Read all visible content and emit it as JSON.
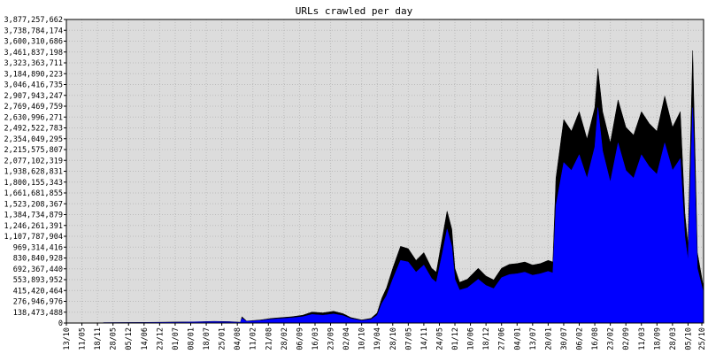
{
  "chart_data": {
    "type": "area",
    "title": "URLs crawled per day",
    "xlabel": "",
    "ylabel": "",
    "ylim": [
      0,
      3877257662
    ],
    "grid": true,
    "legend": "none",
    "colors": {
      "plot_background": "#dcdcdc",
      "grid": "#bcbcbc",
      "series_total": "#000000",
      "series_inner": "#0000ff",
      "frame": "#000000"
    },
    "y_ticks": [
      "0",
      "138,473,488",
      "276,946,976",
      "415,420,464",
      "553,893,952",
      "692,367,440",
      "830,840,928",
      "969,314,416",
      "1,107,787,904",
      "1,246,261,391",
      "1,384,734,879",
      "1,523,208,367",
      "1,661,681,855",
      "1,800,155,343",
      "1,938,628,831",
      "2,077,102,319",
      "2,215,575,807",
      "2,354,049,295",
      "2,492,522,783",
      "2,630,996,271",
      "2,769,469,759",
      "2,907,943,247",
      "3,046,416,735",
      "3,184,890,223",
      "3,323,363,711",
      "3,461,837,198",
      "3,600,310,686",
      "3,738,784,174",
      "3,877,257,662"
    ],
    "x_ticks": [
      "13/10",
      "11/05",
      "18/11",
      "28/05",
      "05/12",
      "14/06",
      "23/12",
      "01/07",
      "08/01",
      "18/07",
      "25/01",
      "04/08",
      "11/02",
      "21/08",
      "28/02",
      "06/09",
      "16/03",
      "23/09",
      "02/04",
      "10/10",
      "19/04",
      "28/10",
      "07/05",
      "14/11",
      "24/05",
      "01/12",
      "10/06",
      "18/12",
      "27/06",
      "04/01",
      "13/07",
      "20/01",
      "30/07",
      "06/02",
      "16/08",
      "23/02",
      "02/09",
      "11/03",
      "18/09",
      "28/03",
      "05/10",
      "25/10"
    ],
    "series": [
      {
        "name": "",
        "color": "#000000",
        "points": [
          [
            0,
            0
          ],
          [
            2.3,
            0
          ],
          [
            2.4,
            5000000
          ],
          [
            5.0,
            8000000
          ],
          [
            7.0,
            12000000
          ],
          [
            8.2,
            15000000
          ],
          [
            9.5,
            22000000
          ],
          [
            10.5,
            18000000
          ],
          [
            11.2,
            10000000
          ],
          [
            11.3,
            80000000
          ],
          [
            11.6,
            25000000
          ],
          [
            12.5,
            40000000
          ],
          [
            13.2,
            60000000
          ],
          [
            14.5,
            80000000
          ],
          [
            15.2,
            100000000
          ],
          [
            15.8,
            140000000
          ],
          [
            16.5,
            130000000
          ],
          [
            17.2,
            150000000
          ],
          [
            17.8,
            120000000
          ],
          [
            18.3,
            70000000
          ],
          [
            19.0,
            40000000
          ],
          [
            19.6,
            60000000
          ],
          [
            20.0,
            130000000
          ],
          [
            20.3,
            320000000
          ],
          [
            20.6,
            450000000
          ],
          [
            21.0,
            700000000
          ],
          [
            21.5,
            980000000
          ],
          [
            22.0,
            950000000
          ],
          [
            22.5,
            800000000
          ],
          [
            23.0,
            900000000
          ],
          [
            23.5,
            700000000
          ],
          [
            23.8,
            650000000
          ],
          [
            24.2,
            1100000000
          ],
          [
            24.5,
            1430000000
          ],
          [
            24.8,
            1200000000
          ],
          [
            25.0,
            700000000
          ],
          [
            25.3,
            520000000
          ],
          [
            25.8,
            560000000
          ],
          [
            26.5,
            700000000
          ],
          [
            27.0,
            600000000
          ],
          [
            27.5,
            550000000
          ],
          [
            28.0,
            700000000
          ],
          [
            28.5,
            750000000
          ],
          [
            29.0,
            760000000
          ],
          [
            29.5,
            780000000
          ],
          [
            30.0,
            740000000
          ],
          [
            30.5,
            760000000
          ],
          [
            31.0,
            800000000
          ],
          [
            31.3,
            780000000
          ],
          [
            31.5,
            1850000000
          ],
          [
            32.0,
            2600000000
          ],
          [
            32.5,
            2450000000
          ],
          [
            33.0,
            2700000000
          ],
          [
            33.5,
            2350000000
          ],
          [
            34.0,
            2750000000
          ],
          [
            34.2,
            3250000000
          ],
          [
            34.5,
            2700000000
          ],
          [
            35.0,
            2300000000
          ],
          [
            35.5,
            2850000000
          ],
          [
            36.0,
            2500000000
          ],
          [
            36.5,
            2400000000
          ],
          [
            37.0,
            2700000000
          ],
          [
            37.5,
            2550000000
          ],
          [
            38.0,
            2450000000
          ],
          [
            38.5,
            2900000000
          ],
          [
            39.0,
            2500000000
          ],
          [
            39.5,
            2700000000
          ],
          [
            39.8,
            1400000000
          ],
          [
            40.0,
            1000000000
          ],
          [
            40.3,
            3480000000
          ],
          [
            40.6,
            900000000
          ],
          [
            41.0,
            450000000
          ]
        ]
      },
      {
        "name": "",
        "color": "#0000ff",
        "points": [
          [
            0,
            0
          ],
          [
            2.3,
            0
          ],
          [
            2.4,
            4000000
          ],
          [
            5.0,
            6000000
          ],
          [
            7.0,
            9000000
          ],
          [
            8.2,
            12000000
          ],
          [
            9.5,
            17000000
          ],
          [
            10.5,
            14000000
          ],
          [
            11.2,
            8000000
          ],
          [
            11.3,
            60000000
          ],
          [
            11.6,
            20000000
          ],
          [
            12.5,
            32000000
          ],
          [
            13.2,
            48000000
          ],
          [
            14.5,
            65000000
          ],
          [
            15.2,
            80000000
          ],
          [
            15.8,
            110000000
          ],
          [
            16.5,
            100000000
          ],
          [
            17.2,
            115000000
          ],
          [
            17.8,
            95000000
          ],
          [
            18.3,
            55000000
          ],
          [
            19.0,
            30000000
          ],
          [
            19.6,
            45000000
          ],
          [
            20.0,
            100000000
          ],
          [
            20.3,
            250000000
          ],
          [
            20.6,
            350000000
          ],
          [
            21.0,
            560000000
          ],
          [
            21.5,
            800000000
          ],
          [
            22.0,
            780000000
          ],
          [
            22.5,
            650000000
          ],
          [
            23.0,
            740000000
          ],
          [
            23.5,
            570000000
          ],
          [
            23.8,
            520000000
          ],
          [
            24.2,
            900000000
          ],
          [
            24.5,
            1200000000
          ],
          [
            24.8,
            980000000
          ],
          [
            25.0,
            560000000
          ],
          [
            25.3,
            420000000
          ],
          [
            25.8,
            450000000
          ],
          [
            26.5,
            560000000
          ],
          [
            27.0,
            480000000
          ],
          [
            27.5,
            440000000
          ],
          [
            28.0,
            580000000
          ],
          [
            28.5,
            620000000
          ],
          [
            29.0,
            630000000
          ],
          [
            29.5,
            650000000
          ],
          [
            30.0,
            610000000
          ],
          [
            30.5,
            630000000
          ],
          [
            31.0,
            660000000
          ],
          [
            31.3,
            640000000
          ],
          [
            31.5,
            1500000000
          ],
          [
            32.0,
            2050000000
          ],
          [
            32.5,
            1950000000
          ],
          [
            33.0,
            2150000000
          ],
          [
            33.5,
            1850000000
          ],
          [
            34.0,
            2250000000
          ],
          [
            34.2,
            2750000000
          ],
          [
            34.5,
            2200000000
          ],
          [
            35.0,
            1800000000
          ],
          [
            35.5,
            2300000000
          ],
          [
            36.0,
            1950000000
          ],
          [
            36.5,
            1850000000
          ],
          [
            37.0,
            2150000000
          ],
          [
            37.5,
            2000000000
          ],
          [
            38.0,
            1900000000
          ],
          [
            38.5,
            2300000000
          ],
          [
            39.0,
            1950000000
          ],
          [
            39.5,
            2100000000
          ],
          [
            39.8,
            1100000000
          ],
          [
            40.0,
            800000000
          ],
          [
            40.3,
            2750000000
          ],
          [
            40.6,
            700000000
          ],
          [
            41.0,
            380000000
          ]
        ]
      }
    ]
  }
}
